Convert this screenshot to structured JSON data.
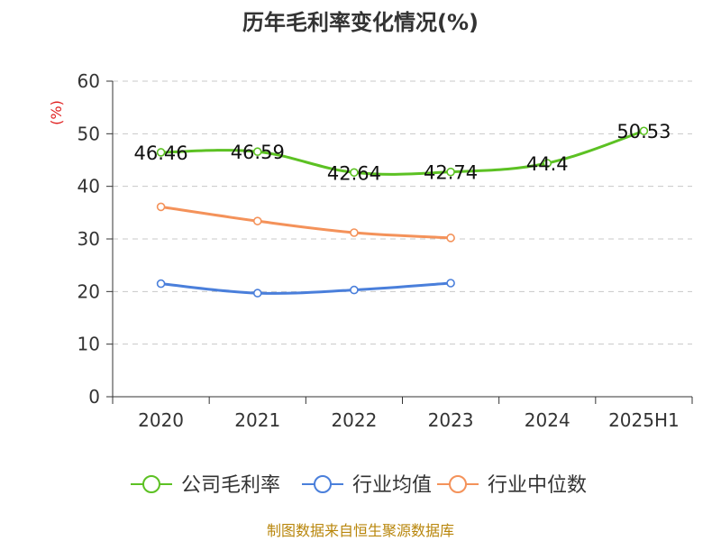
{
  "chart_data": {
    "type": "line",
    "title": "历年毛利率变化情况(%)",
    "ylabel": "(%)",
    "ylim": [
      0,
      60
    ],
    "yticks": [
      0,
      10,
      20,
      30,
      40,
      50,
      60
    ],
    "categories": [
      "2020",
      "2021",
      "2022",
      "2023",
      "2024",
      "2025H1"
    ],
    "grid": true,
    "legend_position": "bottom",
    "series": [
      {
        "name": "公司毛利率",
        "color": "#5cc123",
        "values": [
          46.46,
          46.59,
          42.64,
          42.74,
          44.4,
          50.53
        ],
        "labels": [
          "46.46",
          "46.59",
          "42.64",
          "42.74",
          "44.4",
          "50.53"
        ]
      },
      {
        "name": "行业均值",
        "color": "#4a7fdb",
        "values": [
          21.5,
          19.7,
          20.3,
          21.6,
          null,
          null
        ]
      },
      {
        "name": "行业中位数",
        "color": "#f4925a",
        "values": [
          36.1,
          33.4,
          31.2,
          30.2,
          null,
          null
        ]
      }
    ]
  },
  "source": "制图数据来自恒生聚源数据库"
}
